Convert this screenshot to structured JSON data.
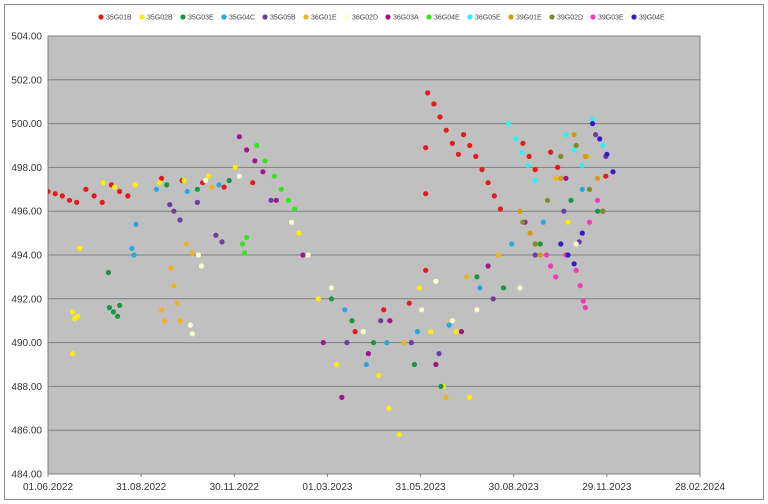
{
  "chart_data": {
    "type": "scatter",
    "title": "",
    "xlabel": "",
    "ylabel": "",
    "x_axis": {
      "type": "date",
      "min": "2022-06-01",
      "max": "2024-02-28",
      "ticks": [
        {
          "date": "2022-06-01",
          "label": "01.06.2022"
        },
        {
          "date": "2022-08-31",
          "label": "31.08.2022"
        },
        {
          "date": "2022-11-30",
          "label": "30.11.2022"
        },
        {
          "date": "2023-03-01",
          "label": "01.03.2023"
        },
        {
          "date": "2023-05-31",
          "label": "31.05.2023"
        },
        {
          "date": "2023-08-30",
          "label": "30.08.2023"
        },
        {
          "date": "2023-11-29",
          "label": "29.11.2023"
        },
        {
          "date": "2024-02-28",
          "label": "28.02.2024"
        }
      ]
    },
    "y_axis": {
      "min": 484,
      "max": 504,
      "ticks": [
        {
          "value": 484,
          "label": "484.00"
        },
        {
          "value": 486,
          "label": "486.00"
        },
        {
          "value": 488,
          "label": "488.00"
        },
        {
          "value": 490,
          "label": "490.00"
        },
        {
          "value": 492,
          "label": "492.00"
        },
        {
          "value": 494,
          "label": "494.00"
        },
        {
          "value": 496,
          "label": "496.00"
        },
        {
          "value": 498,
          "label": "498.00"
        },
        {
          "value": 500,
          "label": "500.00"
        },
        {
          "value": 502,
          "label": "502.00"
        },
        {
          "value": 504,
          "label": "504.00"
        }
      ]
    },
    "grid": true,
    "legend_position": "top",
    "plot_background": "#c0c0c0",
    "series": [
      {
        "name": "35G01B",
        "color": "#e41a1c",
        "points": [
          [
            "2022-06-01",
            496.9
          ],
          [
            "2022-06-08",
            496.8
          ],
          [
            "2022-06-15",
            496.7
          ],
          [
            "2022-06-22",
            496.5
          ],
          [
            "2022-06-29",
            496.4
          ],
          [
            "2022-07-08",
            497.0
          ],
          [
            "2022-07-16",
            496.7
          ],
          [
            "2022-07-24",
            496.4
          ],
          [
            "2022-08-02",
            497.2
          ],
          [
            "2022-08-10",
            496.9
          ],
          [
            "2022-08-18",
            496.7
          ],
          [
            "2022-09-20",
            497.5
          ],
          [
            "2022-10-10",
            497.4
          ],
          [
            "2022-10-30",
            497.3
          ],
          [
            "2022-11-20",
            497.1
          ],
          [
            "2022-12-18",
            497.3
          ],
          [
            "2023-03-28",
            490.5
          ],
          [
            "2023-04-25",
            491.5
          ],
          [
            "2023-05-20",
            491.8
          ],
          [
            "2023-06-05",
            498.9
          ],
          [
            "2023-06-05",
            496.8
          ],
          [
            "2023-06-05",
            493.3
          ],
          [
            "2023-06-07",
            501.4
          ],
          [
            "2023-06-13",
            500.9
          ],
          [
            "2023-06-19",
            500.3
          ],
          [
            "2023-06-25",
            499.7
          ],
          [
            "2023-07-01",
            499.1
          ],
          [
            "2023-07-07",
            498.6
          ],
          [
            "2023-07-12",
            499.5
          ],
          [
            "2023-07-18",
            499.0
          ],
          [
            "2023-07-24",
            498.5
          ],
          [
            "2023-07-30",
            497.9
          ],
          [
            "2023-08-05",
            497.3
          ],
          [
            "2023-08-11",
            496.7
          ],
          [
            "2023-08-17",
            496.1
          ],
          [
            "2023-09-08",
            499.1
          ],
          [
            "2023-09-14",
            498.5
          ],
          [
            "2023-09-20",
            497.9
          ],
          [
            "2023-10-05",
            498.7
          ],
          [
            "2023-10-12",
            498.0
          ],
          [
            "2023-11-28",
            497.6
          ]
        ]
      },
      {
        "name": "35G02B",
        "color": "#ffed00",
        "points": [
          [
            "2022-06-25",
            491.4
          ],
          [
            "2022-06-27",
            491.1
          ],
          [
            "2022-06-30",
            491.2
          ],
          [
            "2022-06-25",
            489.5
          ],
          [
            "2022-07-02",
            494.3
          ],
          [
            "2022-07-25",
            497.3
          ],
          [
            "2022-08-05",
            497.1
          ],
          [
            "2022-08-25",
            497.2
          ],
          [
            "2022-09-18",
            497.3
          ],
          [
            "2022-10-12",
            497.4
          ],
          [
            "2022-11-05",
            497.6
          ],
          [
            "2022-12-01",
            498.0
          ],
          [
            "2023-02-01",
            495.0
          ],
          [
            "2023-02-20",
            492.0
          ],
          [
            "2023-03-10",
            489.0
          ],
          [
            "2023-04-20",
            488.5
          ],
          [
            "2023-04-30",
            487.0
          ],
          [
            "2023-05-10",
            485.8
          ],
          [
            "2023-05-30",
            492.5
          ],
          [
            "2023-06-10",
            490.5
          ],
          [
            "2023-06-22",
            488.0
          ],
          [
            "2023-07-05",
            490.5
          ],
          [
            "2023-07-18",
            487.5
          ],
          [
            "2023-08-15",
            494.0
          ],
          [
            "2023-09-25",
            494.5
          ],
          [
            "2023-10-22",
            495.5
          ]
        ]
      },
      {
        "name": "35G03E",
        "color": "#1a9641",
        "points": [
          [
            "2022-07-30",
            493.2
          ],
          [
            "2022-07-31",
            491.6
          ],
          [
            "2022-08-04",
            491.4
          ],
          [
            "2022-08-08",
            491.2
          ],
          [
            "2022-08-10",
            491.7
          ],
          [
            "2022-09-25",
            497.2
          ],
          [
            "2022-10-25",
            497.0
          ],
          [
            "2022-11-25",
            497.4
          ],
          [
            "2023-03-05",
            492.0
          ],
          [
            "2023-03-25",
            491.0
          ],
          [
            "2023-04-15",
            490.0
          ],
          [
            "2023-05-25",
            489.0
          ],
          [
            "2023-06-20",
            488.0
          ],
          [
            "2023-07-25",
            493.0
          ],
          [
            "2023-08-20",
            492.5
          ],
          [
            "2023-09-25",
            494.5
          ],
          [
            "2023-10-25",
            496.5
          ],
          [
            "2023-11-20",
            496.0
          ]
        ]
      },
      {
        "name": "35G04C",
        "color": "#29a8df",
        "points": [
          [
            "2022-08-22",
            494.3
          ],
          [
            "2022-08-24",
            494.0
          ],
          [
            "2022-08-26",
            495.4
          ],
          [
            "2022-09-15",
            497.0
          ],
          [
            "2022-10-15",
            496.9
          ],
          [
            "2022-11-15",
            497.2
          ],
          [
            "2023-03-18",
            491.5
          ],
          [
            "2023-04-08",
            489.0
          ],
          [
            "2023-04-28",
            490.0
          ],
          [
            "2023-05-28",
            490.5
          ],
          [
            "2023-06-28",
            490.8
          ],
          [
            "2023-07-28",
            492.5
          ],
          [
            "2023-08-28",
            494.5
          ],
          [
            "2023-09-28",
            495.5
          ],
          [
            "2023-11-05",
            497.0
          ]
        ]
      },
      {
        "name": "35G05B",
        "color": "#6b3fa0",
        "points": [
          [
            "2022-09-28",
            496.3
          ],
          [
            "2022-10-02",
            496.0
          ],
          [
            "2022-10-08",
            495.6
          ],
          [
            "2022-10-25",
            496.4
          ],
          [
            "2022-11-12",
            494.9
          ],
          [
            "2022-11-18",
            494.6
          ],
          [
            "2023-01-05",
            496.5
          ],
          [
            "2023-03-20",
            490.0
          ],
          [
            "2023-04-22",
            491.0
          ],
          [
            "2023-05-22",
            490.0
          ],
          [
            "2023-06-18",
            489.5
          ],
          [
            "2023-08-10",
            492.0
          ],
          [
            "2023-09-20",
            494.0
          ],
          [
            "2023-10-18",
            496.0
          ],
          [
            "2023-11-02",
            494.6
          ],
          [
            "2023-11-18",
            499.5
          ],
          [
            "2023-11-28",
            498.5
          ]
        ]
      },
      {
        "name": "36G01E",
        "color": "#f0b323",
        "points": [
          [
            "2022-09-20",
            491.5
          ],
          [
            "2022-09-23",
            491.0
          ],
          [
            "2022-09-29",
            493.4
          ],
          [
            "2022-10-02",
            492.6
          ],
          [
            "2022-10-05",
            491.8
          ],
          [
            "2022-10-08",
            491.0
          ],
          [
            "2022-10-14",
            494.5
          ],
          [
            "2022-10-20",
            494.1
          ],
          [
            "2022-11-08",
            497.1
          ],
          [
            "2023-05-15",
            490.0
          ],
          [
            "2023-06-25",
            487.5
          ],
          [
            "2023-07-15",
            493.0
          ],
          [
            "2023-08-15",
            494.0
          ],
          [
            "2023-09-15",
            495.0
          ],
          [
            "2023-10-10",
            497.5
          ],
          [
            "2023-11-10",
            498.5
          ]
        ]
      },
      {
        "name": "36G02D",
        "color": "#fffccc",
        "points": [
          [
            "2022-10-18",
            490.8
          ],
          [
            "2022-10-20",
            490.4
          ],
          [
            "2022-10-26",
            494.0
          ],
          [
            "2022-10-29",
            493.5
          ],
          [
            "2022-11-02",
            497.4
          ],
          [
            "2022-12-05",
            497.6
          ],
          [
            "2023-01-25",
            495.5
          ],
          [
            "2023-02-10",
            494.0
          ],
          [
            "2023-03-05",
            492.5
          ],
          [
            "2023-04-05",
            490.5
          ],
          [
            "2023-06-01",
            491.5
          ],
          [
            "2023-06-15",
            492.8
          ],
          [
            "2023-07-01",
            491.0
          ],
          [
            "2023-07-25",
            491.5
          ],
          [
            "2023-09-05",
            492.5
          ],
          [
            "2023-10-30",
            494.5
          ]
        ]
      },
      {
        "name": "36G03A",
        "color": "#a0148c",
        "points": [
          [
            "2022-12-05",
            499.4
          ],
          [
            "2022-12-12",
            498.8
          ],
          [
            "2022-12-20",
            498.3
          ],
          [
            "2022-12-28",
            497.8
          ],
          [
            "2023-01-10",
            496.5
          ],
          [
            "2023-02-05",
            494.0
          ],
          [
            "2023-02-25",
            490.0
          ],
          [
            "2023-03-15",
            487.5
          ],
          [
            "2023-04-10",
            489.5
          ],
          [
            "2023-05-01",
            491.0
          ],
          [
            "2023-06-15",
            489.0
          ],
          [
            "2023-07-10",
            490.5
          ],
          [
            "2023-08-05",
            493.5
          ],
          [
            "2023-09-10",
            495.5
          ],
          [
            "2023-10-20",
            497.5
          ],
          [
            "2023-11-25",
            496.0
          ]
        ]
      },
      {
        "name": "36G04E",
        "color": "#33e61a",
        "points": [
          [
            "2022-12-08",
            494.5
          ],
          [
            "2022-12-10",
            494.1
          ],
          [
            "2022-12-12",
            494.8
          ],
          [
            "2022-12-22",
            499.0
          ],
          [
            "2022-12-30",
            498.3
          ],
          [
            "2023-01-08",
            497.6
          ],
          [
            "2023-01-15",
            497.0
          ],
          [
            "2023-01-22",
            496.5
          ],
          [
            "2023-01-28",
            496.1
          ]
        ]
      },
      {
        "name": "36G05E",
        "color": "#33f0f0",
        "points": [
          [
            "2023-08-25",
            500.0
          ],
          [
            "2023-09-01",
            499.3
          ],
          [
            "2023-09-07",
            498.7
          ],
          [
            "2023-09-13",
            498.1
          ],
          [
            "2023-09-20",
            497.4
          ],
          [
            "2023-10-20",
            499.5
          ],
          [
            "2023-10-28",
            498.8
          ],
          [
            "2023-11-05",
            498.1
          ],
          [
            "2023-11-15",
            500.2
          ],
          [
            "2023-11-25",
            499.0
          ]
        ]
      },
      {
        "name": "39G01E",
        "color": "#d39b13",
        "points": [
          [
            "2023-09-05",
            496.0
          ],
          [
            "2023-09-15",
            495.0
          ],
          [
            "2023-09-25",
            494.0
          ],
          [
            "2023-10-05",
            493.5
          ],
          [
            "2023-10-15",
            497.5
          ],
          [
            "2023-10-28",
            499.5
          ],
          [
            "2023-11-08",
            498.5
          ],
          [
            "2023-11-20",
            497.5
          ]
        ]
      },
      {
        "name": "39G02D",
        "color": "#7c8c2a",
        "points": [
          [
            "2023-09-08",
            495.5
          ],
          [
            "2023-09-20",
            494.5
          ],
          [
            "2023-10-02",
            496.5
          ],
          [
            "2023-10-15",
            498.5
          ],
          [
            "2023-10-30",
            499.0
          ],
          [
            "2023-11-12",
            497.0
          ],
          [
            "2023-11-25",
            496.0
          ]
        ]
      },
      {
        "name": "39G03E",
        "color": "#f03cb4",
        "points": [
          [
            "2023-10-01",
            494.0
          ],
          [
            "2023-10-05",
            493.5
          ],
          [
            "2023-10-10",
            493.0
          ],
          [
            "2023-10-20",
            494.0
          ],
          [
            "2023-10-30",
            493.3
          ],
          [
            "2023-11-03",
            492.6
          ],
          [
            "2023-11-06",
            491.9
          ],
          [
            "2023-11-08",
            491.6
          ],
          [
            "2023-11-12",
            495.5
          ],
          [
            "2023-11-20",
            496.5
          ]
        ]
      },
      {
        "name": "39G04E",
        "color": "#3a18c8",
        "points": [
          [
            "2023-10-15",
            494.5
          ],
          [
            "2023-10-22",
            494.0
          ],
          [
            "2023-10-28",
            493.6
          ],
          [
            "2023-11-05",
            495.0
          ],
          [
            "2023-11-15",
            500.0
          ],
          [
            "2023-11-22",
            499.3
          ],
          [
            "2023-11-29",
            498.6
          ],
          [
            "2023-12-05",
            497.8
          ]
        ]
      }
    ]
  }
}
